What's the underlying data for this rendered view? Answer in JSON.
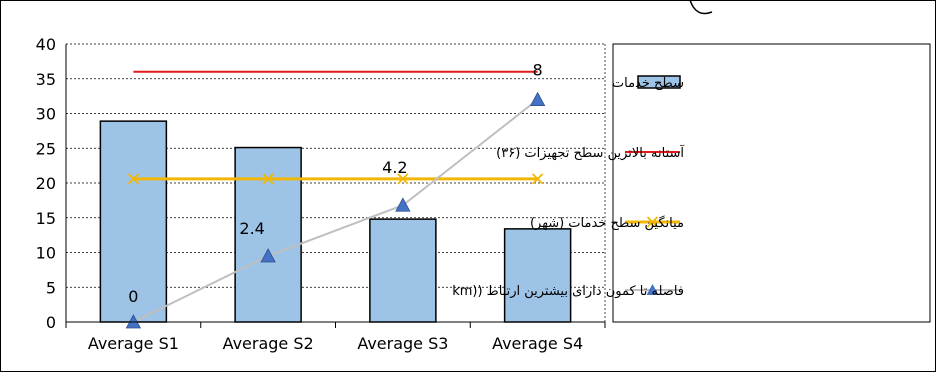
{
  "chart_data": {
    "type": "bar",
    "title": "",
    "xlabel": "",
    "ylabel": "",
    "categories": [
      "Average S1",
      "Average S2",
      "Average S3",
      "Average S4"
    ],
    "ylim": [
      0,
      40
    ],
    "yticks": [
      "0",
      "5",
      "10",
      "15",
      "20",
      "25",
      "30",
      "35",
      "40"
    ],
    "grid": true,
    "legend_position": "right",
    "series": [
      {
        "name": "سطح خدمات",
        "kind": "bar",
        "values": [
          28.9,
          25.1,
          14.8,
          13.4
        ],
        "color": "#9DC3E6",
        "edge": "#000000"
      },
      {
        "name": "آستانه بالاترین سطح تجهیزات (۳۶)",
        "kind": "line",
        "values": [
          36,
          36,
          36,
          36
        ],
        "color": "#E31A1C"
      },
      {
        "name": "میانگین سطح خدمات (شهر)",
        "kind": "line",
        "marker": "x",
        "values": [
          20.6,
          20.6,
          20.6,
          20.6
        ],
        "color": "#F2B705"
      },
      {
        "name": "فاصله تا کمون دارای بیشترین ارتباط ((km",
        "kind": "line",
        "marker": "triangle",
        "values": [
          0,
          9.5,
          16.8,
          32
        ],
        "data_labels": [
          "0",
          "2.4",
          "4.2",
          "8"
        ],
        "color": "#BFBFBF",
        "marker_color": "#4472C4"
      }
    ]
  }
}
